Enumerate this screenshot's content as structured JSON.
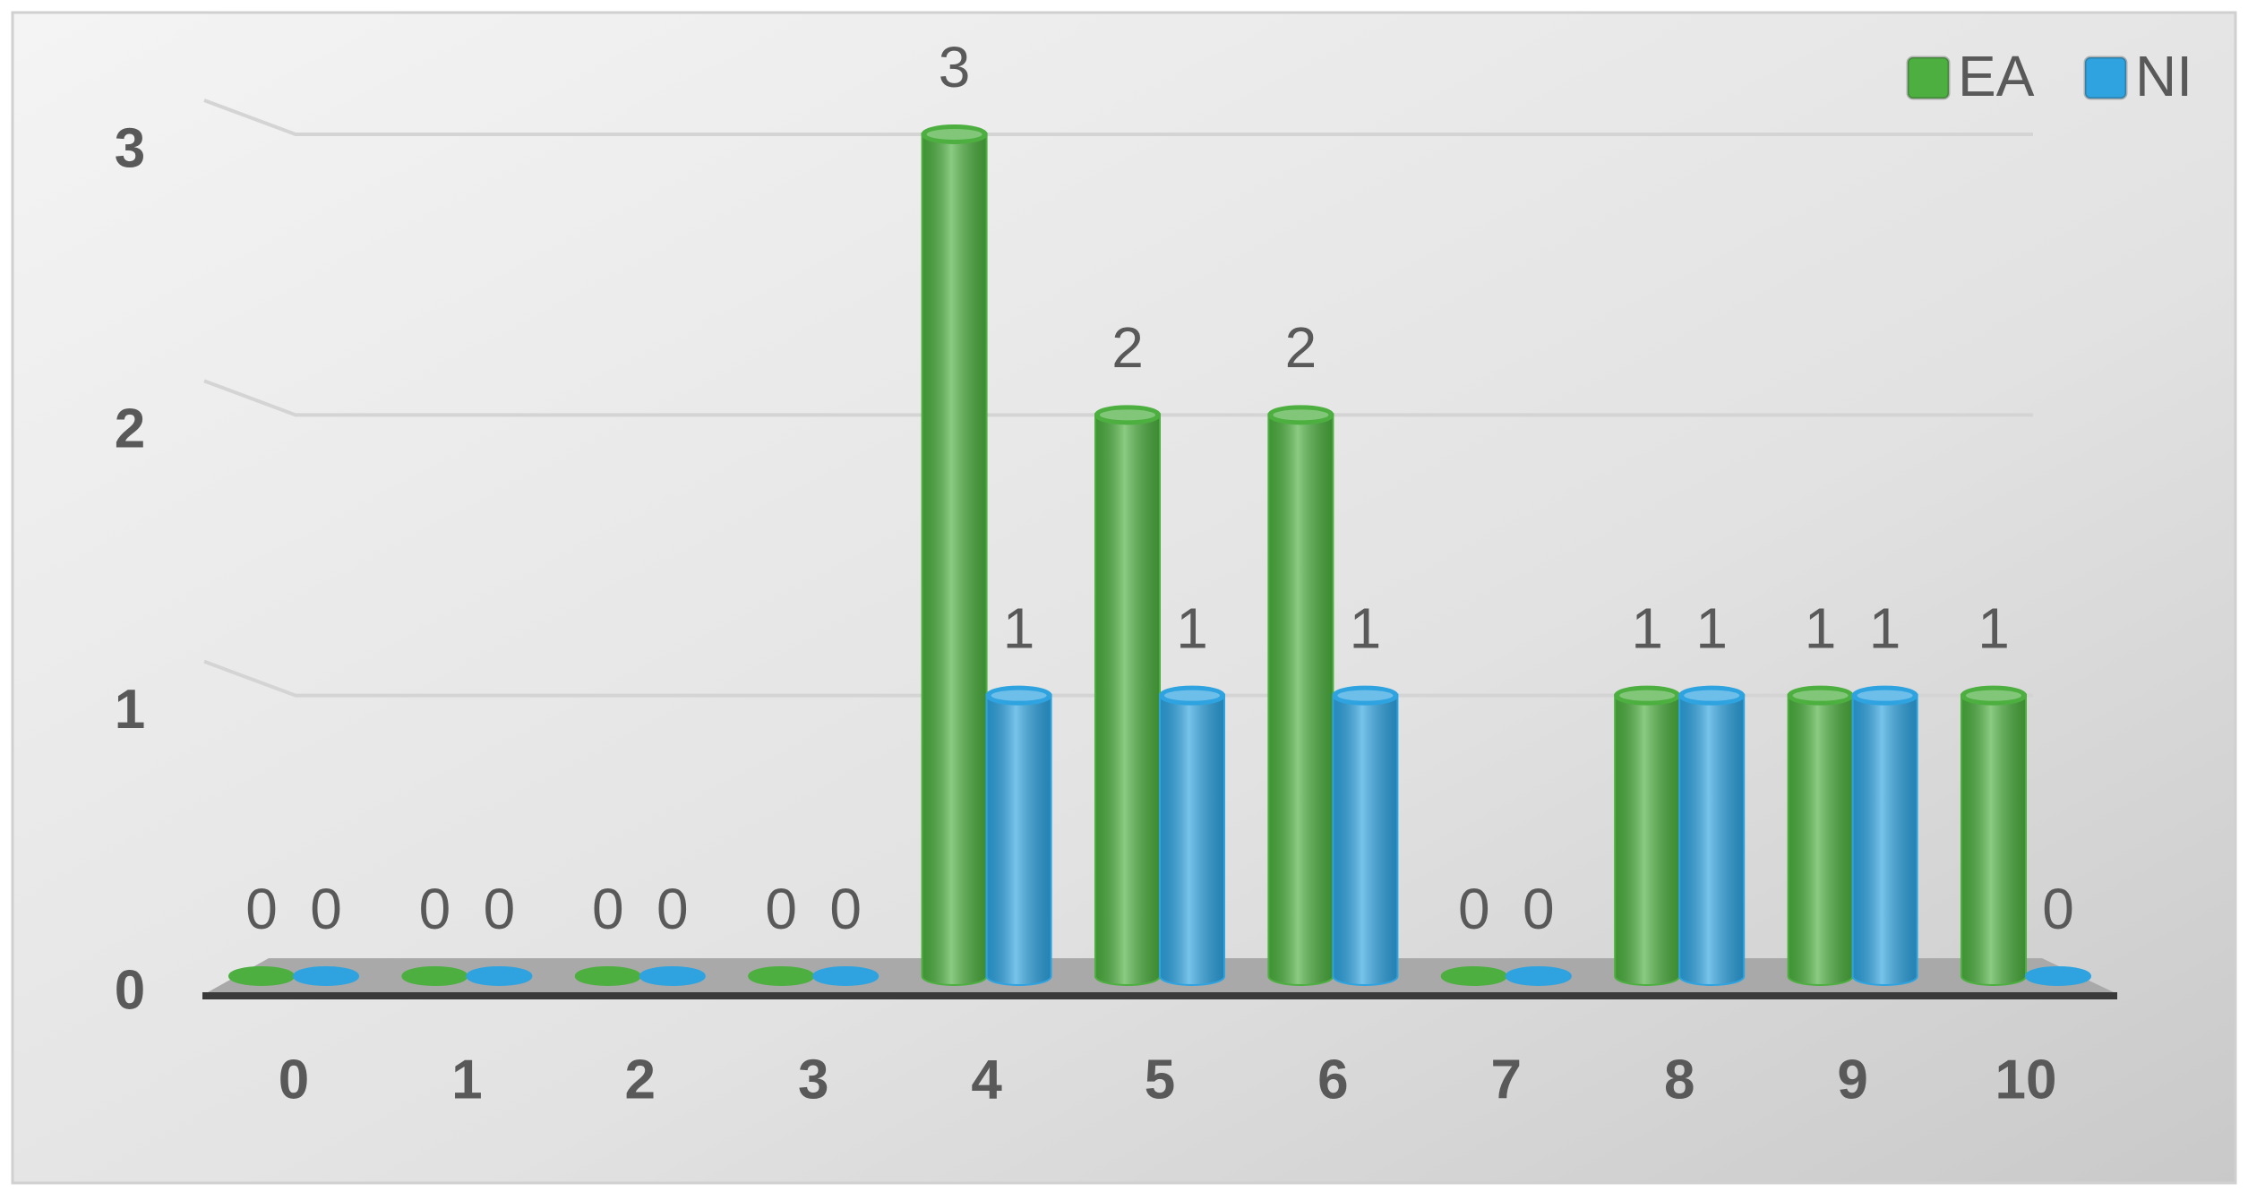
{
  "chart_data": {
    "type": "bar",
    "categories": [
      "0",
      "1",
      "2",
      "3",
      "4",
      "5",
      "6",
      "7",
      "8",
      "9",
      "10"
    ],
    "series": [
      {
        "name": "EA",
        "color": "#4caf3f",
        "values": [
          0,
          0,
          0,
          0,
          3,
          2,
          2,
          0,
          1,
          1,
          1
        ]
      },
      {
        "name": "NI",
        "color": "#2ea3e0",
        "values": [
          0,
          0,
          0,
          0,
          1,
          1,
          1,
          0,
          1,
          1,
          0
        ]
      }
    ],
    "ylim": [
      0,
      3
    ],
    "yticks": [
      0,
      1,
      2,
      3
    ],
    "grid": true,
    "legend": "top-right"
  }
}
